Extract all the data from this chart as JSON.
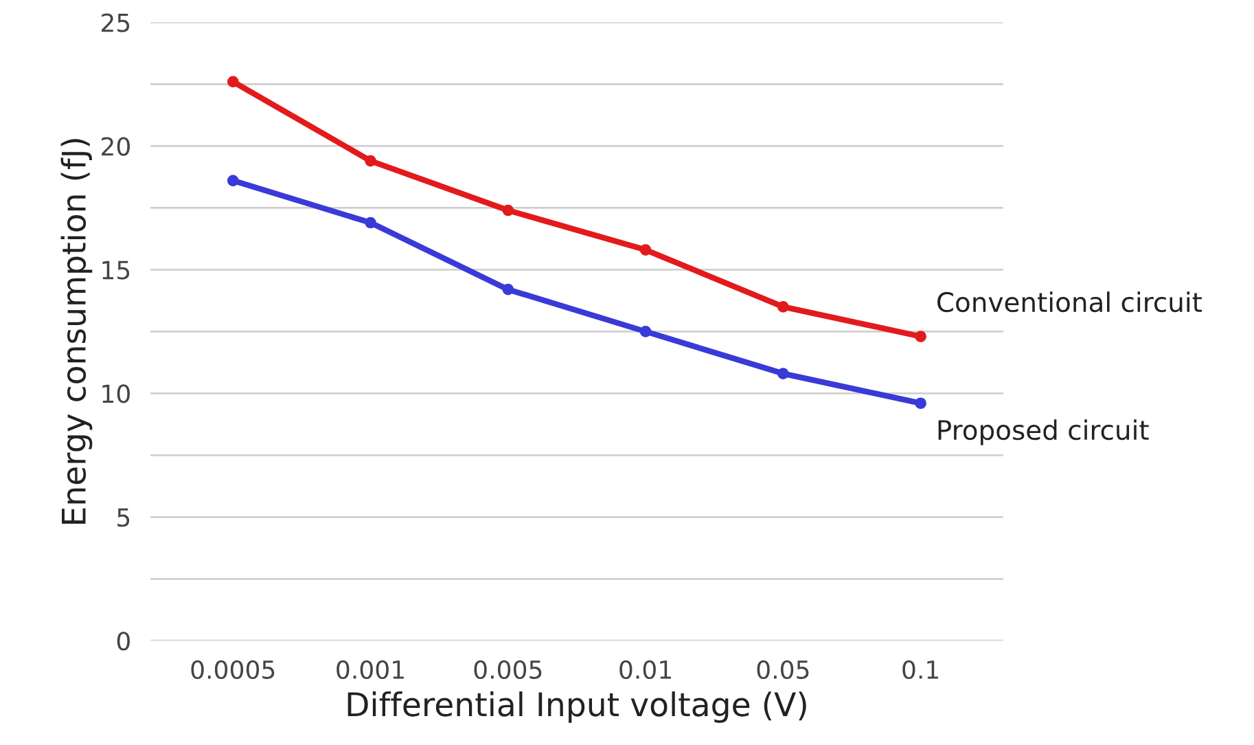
{
  "chart_data": {
    "type": "line",
    "xlabel": "Differential Input voltage (V)",
    "ylabel": "Energy consumption (fJ)",
    "categories": [
      "0.0005",
      "0.001",
      "0.005",
      "0.01",
      "0.05",
      "0.1"
    ],
    "series": [
      {
        "name": "Conventional circuit",
        "color": "#e31a1c",
        "values": [
          22.6,
          19.4,
          17.4,
          15.8,
          13.5,
          12.3
        ]
      },
      {
        "name": "Proposed circuit",
        "color": "#3a3ad8",
        "values": [
          18.6,
          16.9,
          14.2,
          12.5,
          10.8,
          9.6
        ]
      }
    ],
    "ylim": [
      0,
      25
    ],
    "yticks": [
      0,
      {
        "value": 2.5,
        "label": null
      },
      5,
      {
        "value": 7.5,
        "label": null
      },
      10,
      {
        "value": 12.5,
        "label": null
      },
      15,
      {
        "value": 17.5,
        "label": null
      },
      20,
      {
        "value": 22.5,
        "label": null
      },
      25
    ],
    "grid": "y",
    "marker": "circle",
    "line_style": "solid",
    "legend": false
  }
}
